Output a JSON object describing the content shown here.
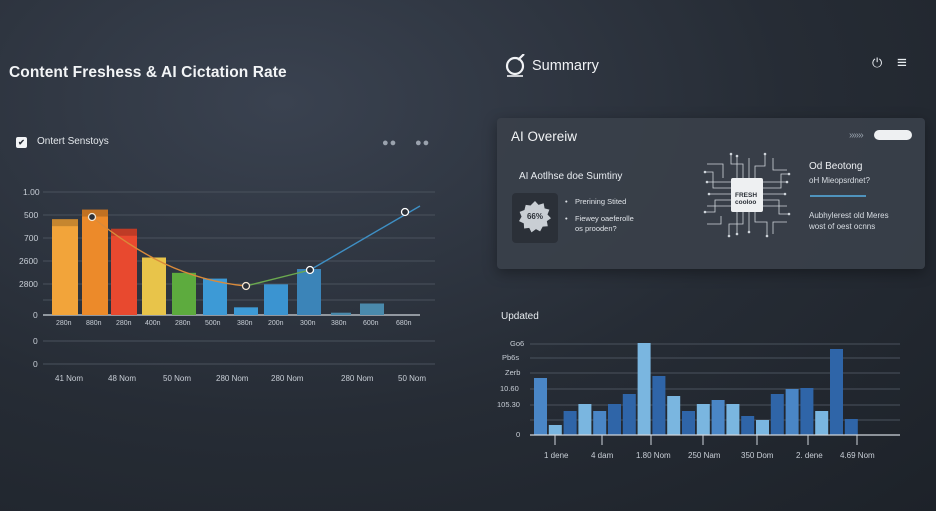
{
  "left_panel": {
    "title": "Content Freshess & AI Cictation Rate",
    "check_glyph": "✔",
    "panel_label": "Ontert Senstoys",
    "menu_dots": "●●",
    "menu_dots_2": "●●"
  },
  "chart_data": [
    {
      "type": "bar",
      "title": "Content Freshess & AI Cictation Rate",
      "y_tick_labels": [
        "1.00",
        "500",
        "700",
        "2600",
        "2800",
        "0"
      ],
      "y_tick_labels_lower": [
        "0",
        "0"
      ],
      "x_tick_labels": [
        "280n",
        "880n",
        "280n",
        "400n",
        "280n",
        "500n",
        "380n",
        "200n",
        "300n",
        "380n",
        "600n",
        "680n"
      ],
      "x_tick_labels_lower": [
        "41 Nom",
        "48 Nom",
        "50 Nom",
        "280 Nom",
        "280 Nom",
        "280 Nom",
        "50 Nom"
      ],
      "series": [
        {
          "name": "bars",
          "values": [
            2500,
            2750,
            2250,
            1500,
            1100,
            950,
            200,
            800,
            1200,
            60,
            300
          ]
        },
        {
          "name": "line",
          "points": [
            [
              92,
              217
            ],
            [
              246,
              286
            ],
            [
              310,
              270
            ],
            [
              405,
              212
            ]
          ]
        }
      ],
      "colors": [
        "#f2a43a",
        "#ec8a2a",
        "#e8492f",
        "#e8c44a",
        "#5dab3e",
        "#3d9ad6",
        "#3d9ad6",
        "#3b94d1",
        "#3b84b8",
        "#4a8aac",
        "#4a8aac"
      ]
    },
    {
      "type": "bar",
      "title": "Updated",
      "y_tick_labels": [
        "Go6",
        "Pb6s",
        "Zerb",
        "10.60",
        "105.30",
        "0"
      ],
      "x_tick_labels": [
        "1 dene",
        "4 dam",
        "1.80 Nom",
        "250 Nam",
        "350 Dom",
        "2. dene",
        "4.69 Nom"
      ],
      "series": [
        {
          "name": "bars",
          "values": [
            57,
            10,
            24,
            31,
            24,
            31,
            41,
            92,
            59,
            39,
            24,
            31,
            35,
            31,
            19,
            15,
            41,
            46,
            47,
            24,
            86,
            16
          ]
        }
      ],
      "colors": [
        "#4a86c6",
        "#7ab6e0",
        "#2f65a8",
        "#7ab6e0",
        "#4a86c6",
        "#2f65a8",
        "#2f65a8",
        "#7ab6e0",
        "#2f65a8",
        "#7ab6e0",
        "#2f65a8",
        "#7ab6e0",
        "#4a86c6",
        "#7ab6e0",
        "#2f65a8",
        "#7ab6e0",
        "#2f65a8",
        "#4a86c6",
        "#2f65a8",
        "#7ab6e0",
        "#2f65a8",
        "#2f65a8"
      ]
    }
  ],
  "summary": {
    "title": "Summarry",
    "logo_icon": "circle-arrow-logo-icon",
    "power_glyph": "⏻",
    "menu_glyph": "≡"
  },
  "overview_card": {
    "title": "AI Overeiw",
    "chevrons": "»»»",
    "heading": "AI Aotlhse doe Sumtiny",
    "badge": "66%",
    "bullets": [
      "Prerining Stited",
      "Fiewey oaeferolle"
    ],
    "bullet_cont": "os prooden?",
    "bullet_glyph": "•",
    "chip_text": [
      "FRESH",
      "cooloo"
    ],
    "right_title": "Od Beotong",
    "right_sub": "oH Mieopsrdnet?",
    "right_body": [
      "Aubhylerest old Meres",
      "wost of oest ocnns"
    ]
  },
  "bottom": {
    "title": "Updated"
  }
}
